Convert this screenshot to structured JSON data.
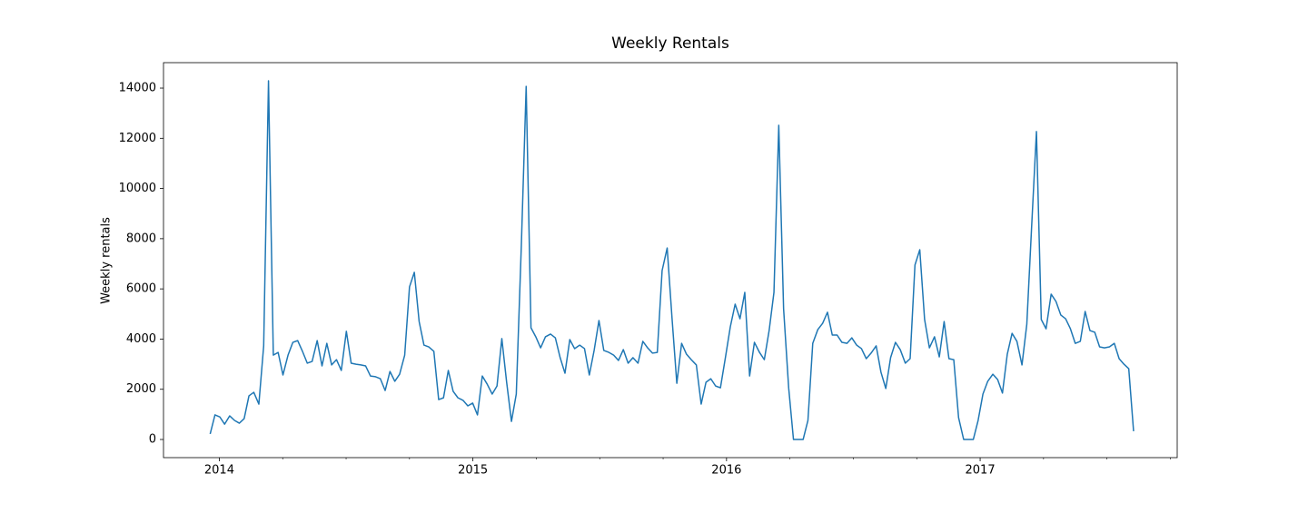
{
  "chart_data": {
    "type": "line",
    "title": "Weekly Rentals",
    "ylabel": "Weekly rentals",
    "color": "#1f77b4",
    "xlim": [
      2013.78,
      2017.777
    ],
    "xticks": [
      2014,
      2015,
      2016,
      2017
    ],
    "xminorticks": [
      2014.25,
      2014.5,
      2014.75,
      2015.25,
      2015.5,
      2015.75,
      2016.25,
      2016.5,
      2016.75,
      2017.25,
      2017.5,
      2017.75
    ],
    "ylim": [
      -723,
      15014
    ],
    "yticks": [
      0,
      2000,
      4000,
      6000,
      8000,
      10000,
      12000,
      14000
    ],
    "x": [
      2013.964,
      2013.983,
      2014.002,
      2014.021,
      2014.041,
      2014.06,
      2014.079,
      2014.098,
      2014.117,
      2014.136,
      2014.156,
      2014.175,
      2014.194,
      2014.213,
      2014.232,
      2014.251,
      2014.271,
      2014.29,
      2014.309,
      2014.328,
      2014.347,
      2014.366,
      2014.386,
      2014.405,
      2014.424,
      2014.443,
      2014.462,
      2014.481,
      2014.501,
      2014.52,
      2014.539,
      2014.558,
      2014.577,
      2014.596,
      2014.616,
      2014.635,
      2014.654,
      2014.673,
      2014.692,
      2014.711,
      2014.731,
      2014.75,
      2014.769,
      2014.788,
      2014.807,
      2014.826,
      2014.846,
      2014.865,
      2014.884,
      2014.903,
      2014.922,
      2014.941,
      2014.961,
      2014.98,
      2014.999,
      2015.018,
      2015.037,
      2015.056,
      2015.076,
      2015.095,
      2015.114,
      2015.133,
      2015.152,
      2015.171,
      2015.191,
      2015.21,
      2015.229,
      2015.248,
      2015.267,
      2015.286,
      2015.306,
      2015.325,
      2015.344,
      2015.363,
      2015.382,
      2015.401,
      2015.421,
      2015.44,
      2015.459,
      2015.478,
      2015.497,
      2015.516,
      2015.536,
      2015.555,
      2015.574,
      2015.593,
      2015.612,
      2015.631,
      2015.651,
      2015.67,
      2015.689,
      2015.708,
      2015.727,
      2015.746,
      2015.766,
      2015.785,
      2015.804,
      2015.823,
      2015.842,
      2015.861,
      2015.881,
      2015.9,
      2015.919,
      2015.938,
      2015.957,
      2015.976,
      2015.996,
      2016.015,
      2016.034,
      2016.053,
      2016.072,
      2016.091,
      2016.11,
      2016.13,
      2016.149,
      2016.168,
      2016.187,
      2016.206,
      2016.225,
      2016.245,
      2016.264,
      2016.283,
      2016.302,
      2016.321,
      2016.34,
      2016.36,
      2016.379,
      2016.398,
      2016.417,
      2016.436,
      2016.455,
      2016.475,
      2016.494,
      2016.513,
      2016.532,
      2016.551,
      2016.57,
      2016.59,
      2016.609,
      2016.628,
      2016.647,
      2016.666,
      2016.685,
      2016.705,
      2016.724,
      2016.743,
      2016.762,
      2016.781,
      2016.8,
      2016.82,
      2016.839,
      2016.858,
      2016.877,
      2016.896,
      2016.915,
      2016.935,
      2016.954,
      2016.973,
      2016.992,
      2017.011,
      2017.03,
      2017.05,
      2017.069,
      2017.088,
      2017.107,
      2017.126,
      2017.145,
      2017.165,
      2017.184,
      2017.203,
      2017.222,
      2017.241,
      2017.26,
      2017.28,
      2017.299,
      2017.318,
      2017.337,
      2017.356,
      2017.375,
      2017.395,
      2017.414,
      2017.433,
      2017.452,
      2017.471,
      2017.49,
      2017.51,
      2017.529,
      2017.548,
      2017.567,
      2017.586,
      2017.605
    ],
    "values": [
      220,
      980,
      900,
      610,
      940,
      760,
      650,
      830,
      1740,
      1880,
      1410,
      3730,
      14290,
      3360,
      3470,
      2570,
      3360,
      3870,
      3940,
      3510,
      3040,
      3110,
      3940,
      2930,
      3830,
      2970,
      3180,
      2750,
      4310,
      3040,
      3000,
      2970,
      2930,
      2530,
      2500,
      2420,
      1950,
      2710,
      2320,
      2600,
      3360,
      6080,
      6660,
      4700,
      3760,
      3690,
      3510,
      1590,
      1660,
      2750,
      1920,
      1660,
      1560,
      1340,
      1450,
      980,
      2530,
      2210,
      1810,
      2130,
      4020,
      2280,
      720,
      1810,
      7740,
      14070,
      4450,
      4090,
      3650,
      4090,
      4200,
      4050,
      3260,
      2640,
      3980,
      3620,
      3760,
      3620,
      2570,
      3550,
      4740,
      3550,
      3470,
      3360,
      3150,
      3580,
      3040,
      3260,
      3040,
      3910,
      3650,
      3440,
      3470,
      6730,
      7630,
      4850,
      2240,
      3830,
      3400,
      3180,
      2970,
      1410,
      2280,
      2420,
      2130,
      2060,
      3290,
      4490,
      5390,
      4810,
      5860,
      2530,
      3870,
      3470,
      3180,
      4340,
      5860,
      12520,
      5210,
      2060,
      0,
      0,
      0,
      760,
      3830,
      4380,
      4630,
      5070,
      4160,
      4160,
      3870,
      3830,
      4050,
      3760,
      3620,
      3220,
      3440,
      3730,
      2680,
      2030,
      3260,
      3870,
      3580,
      3040,
      3220,
      6950,
      7560,
      4780,
      3650,
      4090,
      3290,
      4700,
      3220,
      3180,
      870,
      0,
      0,
      0,
      760,
      1810,
      2320,
      2600,
      2390,
      1850,
      3400,
      4230,
      3910,
      2970,
      4590,
      8470,
      12270,
      4780,
      4410,
      5790,
      5500,
      4960,
      4810,
      4410,
      3830,
      3910,
      5100,
      4340,
      4270,
      3690,
      3650,
      3690,
      3830,
      3220,
      3000,
      2820,
      330
    ]
  }
}
